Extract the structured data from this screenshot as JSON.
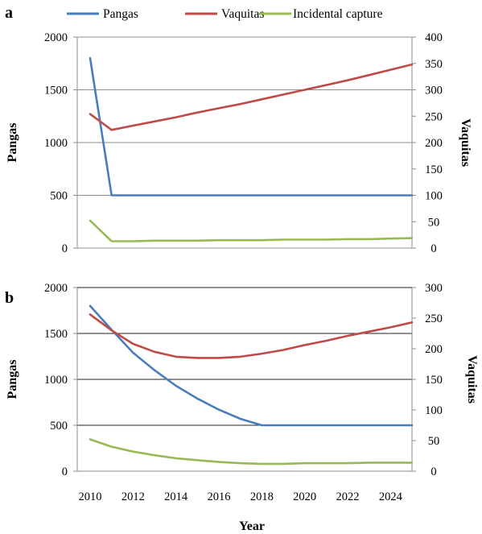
{
  "legend": [
    {
      "label": "Pangas",
      "color": "#4a7ebb"
    },
    {
      "label": "Vaquitas",
      "color": "#be4b48"
    },
    {
      "label": "Incidental capture",
      "color": "#98b954"
    }
  ],
  "xlabel": "Year",
  "chart_data": [
    {
      "type": "line",
      "panel_label": "a",
      "x": [
        2010,
        2011,
        2012,
        2013,
        2014,
        2015,
        2016,
        2017,
        2018,
        2019,
        2020,
        2021,
        2022,
        2023,
        2024,
        2025
      ],
      "ylabel_left": "Pangas",
      "ylabel_right": "Vaquitas",
      "ylim_left": [
        0,
        2000
      ],
      "yticks_left": [
        0,
        500,
        1000,
        1500,
        2000
      ],
      "ylim_right": [
        0,
        400
      ],
      "yticks_right": [
        0,
        50,
        100,
        150,
        200,
        250,
        300,
        350,
        400
      ],
      "grid": true,
      "series": [
        {
          "name": "Pangas",
          "axis": "left",
          "color": "#4a7ebb",
          "values": [
            1800,
            500,
            500,
            500,
            500,
            500,
            500,
            500,
            500,
            500,
            500,
            500,
            500,
            500,
            500,
            500
          ]
        },
        {
          "name": "Vaquitas",
          "axis": "right",
          "color": "#be4b48",
          "values": [
            254,
            224,
            232,
            240,
            248,
            257,
            265,
            273,
            282,
            291,
            300,
            309,
            318,
            328,
            338,
            348
          ]
        },
        {
          "name": "Incidental capture",
          "axis": "right",
          "color": "#98b954",
          "values": [
            52,
            13,
            13,
            14,
            14,
            14,
            15,
            15,
            15,
            16,
            16,
            16,
            17,
            17,
            18,
            19
          ]
        }
      ]
    },
    {
      "type": "line",
      "panel_label": "b",
      "x": [
        2010,
        2011,
        2012,
        2013,
        2014,
        2015,
        2016,
        2017,
        2018,
        2019,
        2020,
        2021,
        2022,
        2023,
        2024,
        2025
      ],
      "xticks": [
        2010,
        2012,
        2014,
        2016,
        2018,
        2020,
        2022,
        2024
      ],
      "ylabel_left": "Pangas",
      "ylabel_right": "Vaquitas",
      "ylim_left": [
        0,
        2000
      ],
      "yticks_left": [
        0,
        500,
        1000,
        1500,
        2000
      ],
      "ylim_right": [
        0,
        300
      ],
      "yticks_right": [
        0,
        50,
        100,
        150,
        200,
        250,
        300
      ],
      "grid": true,
      "series": [
        {
          "name": "Pangas",
          "axis": "left",
          "color": "#4a7ebb",
          "values": [
            1800,
            1540,
            1290,
            1100,
            930,
            790,
            670,
            570,
            500,
            500,
            500,
            500,
            500,
            500,
            500,
            500
          ]
        },
        {
          "name": "Vaquitas",
          "axis": "right",
          "color": "#be4b48",
          "values": [
            256,
            230,
            208,
            195,
            187,
            185,
            185,
            187,
            192,
            198,
            206,
            213,
            221,
            228,
            235,
            243
          ]
        },
        {
          "name": "Incidental capture",
          "axis": "right",
          "color": "#98b954",
          "values": [
            52,
            40,
            32,
            26,
            21,
            18,
            15,
            13,
            12,
            12,
            13,
            13,
            13,
            14,
            14,
            14
          ]
        }
      ]
    }
  ]
}
